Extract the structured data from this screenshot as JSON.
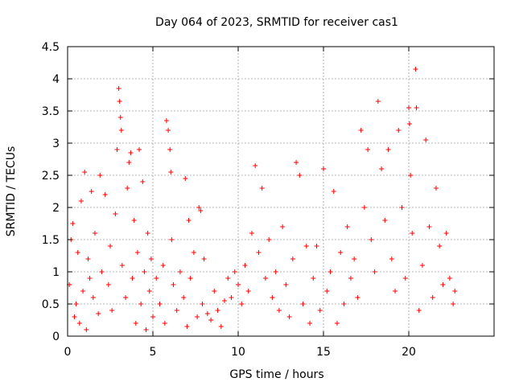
{
  "chart_data": {
    "type": "scatter",
    "title": "Day 064 of 2023, SRMTID for receiver cas1",
    "xlabel": "GPS time / hours",
    "ylabel": "SRMTID / TECUs",
    "xlim": [
      0,
      25
    ],
    "ylim": [
      0,
      4.5
    ],
    "xticks": [
      0,
      5,
      10,
      15,
      20
    ],
    "yticks": [
      0,
      0.5,
      1,
      1.5,
      2,
      2.5,
      3,
      3.5,
      4,
      4.5
    ],
    "x_tick_labels": [
      "0",
      "5",
      "10",
      "15",
      "20"
    ],
    "y_tick_labels": [
      "0",
      "0.5",
      "1",
      "1.5",
      "2",
      "2.5",
      "3",
      "3.5",
      "4",
      "4.5"
    ],
    "grid": true,
    "marker": "+",
    "color": "#ff0000",
    "series": [
      {
        "name": "SRMTID",
        "points": [
          [
            0.1,
            0.8
          ],
          [
            0.2,
            1.5
          ],
          [
            0.3,
            1.75
          ],
          [
            0.4,
            0.3
          ],
          [
            0.5,
            0.5
          ],
          [
            0.6,
            1.3
          ],
          [
            0.7,
            0.2
          ],
          [
            0.8,
            2.1
          ],
          [
            0.9,
            0.7
          ],
          [
            1.0,
            2.55
          ],
          [
            1.1,
            0.1
          ],
          [
            1.2,
            1.2
          ],
          [
            1.3,
            0.9
          ],
          [
            1.4,
            2.25
          ],
          [
            1.5,
            0.6
          ],
          [
            1.6,
            1.6
          ],
          [
            1.8,
            0.35
          ],
          [
            1.9,
            2.5
          ],
          [
            2.0,
            1.0
          ],
          [
            2.2,
            2.2
          ],
          [
            2.4,
            0.8
          ],
          [
            2.5,
            1.4
          ],
          [
            2.6,
            0.4
          ],
          [
            2.8,
            1.9
          ],
          [
            2.9,
            2.9
          ],
          [
            3.0,
            3.85
          ],
          [
            3.05,
            3.65
          ],
          [
            3.1,
            3.4
          ],
          [
            3.15,
            3.2
          ],
          [
            3.2,
            1.1
          ],
          [
            3.4,
            0.6
          ],
          [
            3.5,
            2.3
          ],
          [
            3.6,
            2.7
          ],
          [
            3.7,
            2.85
          ],
          [
            3.8,
            0.9
          ],
          [
            3.9,
            1.8
          ],
          [
            4.0,
            0.2
          ],
          [
            4.1,
            1.3
          ],
          [
            4.2,
            2.9
          ],
          [
            4.3,
            0.5
          ],
          [
            4.4,
            2.4
          ],
          [
            4.5,
            1.0
          ],
          [
            4.6,
            0.1
          ],
          [
            4.7,
            1.6
          ],
          [
            4.8,
            0.7
          ],
          [
            4.9,
            1.2
          ],
          [
            5.0,
            0.3
          ],
          [
            5.2,
            0.9
          ],
          [
            5.4,
            0.5
          ],
          [
            5.6,
            1.1
          ],
          [
            5.7,
            0.2
          ],
          [
            5.8,
            3.35
          ],
          [
            5.9,
            3.2
          ],
          [
            6.0,
            2.9
          ],
          [
            6.05,
            2.55
          ],
          [
            6.1,
            1.5
          ],
          [
            6.2,
            0.8
          ],
          [
            6.4,
            0.4
          ],
          [
            6.6,
            1.0
          ],
          [
            6.8,
            0.6
          ],
          [
            6.9,
            2.45
          ],
          [
            7.0,
            0.15
          ],
          [
            7.1,
            1.8
          ],
          [
            7.2,
            0.9
          ],
          [
            7.4,
            1.3
          ],
          [
            7.6,
            0.3
          ],
          [
            7.7,
            2.0
          ],
          [
            7.8,
            1.95
          ],
          [
            7.9,
            0.5
          ],
          [
            8.0,
            1.2
          ],
          [
            8.2,
            0.35
          ],
          [
            8.4,
            0.25
          ],
          [
            8.6,
            0.7
          ],
          [
            8.8,
            0.4
          ],
          [
            9.0,
            0.15
          ],
          [
            9.2,
            0.55
          ],
          [
            9.4,
            0.9
          ],
          [
            9.6,
            0.6
          ],
          [
            9.8,
            1.0
          ],
          [
            10.0,
            0.8
          ],
          [
            10.2,
            0.5
          ],
          [
            10.4,
            1.1
          ],
          [
            10.6,
            0.7
          ],
          [
            10.8,
            1.6
          ],
          [
            11.0,
            2.65
          ],
          [
            11.2,
            1.3
          ],
          [
            11.4,
            2.3
          ],
          [
            11.6,
            0.9
          ],
          [
            11.8,
            1.5
          ],
          [
            12.0,
            0.6
          ],
          [
            12.2,
            1.0
          ],
          [
            12.4,
            0.4
          ],
          [
            12.6,
            1.7
          ],
          [
            12.8,
            0.8
          ],
          [
            13.0,
            0.3
          ],
          [
            13.2,
            1.2
          ],
          [
            13.4,
            2.7
          ],
          [
            13.6,
            2.5
          ],
          [
            13.8,
            0.5
          ],
          [
            14.0,
            1.4
          ],
          [
            14.2,
            0.2
          ],
          [
            14.4,
            0.9
          ],
          [
            14.6,
            1.4
          ],
          [
            14.8,
            0.4
          ],
          [
            15.0,
            2.6
          ],
          [
            15.2,
            0.7
          ],
          [
            15.4,
            1.0
          ],
          [
            15.6,
            2.25
          ],
          [
            15.8,
            0.2
          ],
          [
            16.0,
            1.3
          ],
          [
            16.2,
            0.5
          ],
          [
            16.4,
            1.7
          ],
          [
            16.6,
            0.9
          ],
          [
            16.8,
            1.2
          ],
          [
            17.0,
            0.6
          ],
          [
            17.2,
            3.2
          ],
          [
            17.4,
            2.0
          ],
          [
            17.6,
            2.9
          ],
          [
            17.8,
            1.5
          ],
          [
            18.0,
            1.0
          ],
          [
            18.2,
            3.65
          ],
          [
            18.4,
            2.6
          ],
          [
            18.6,
            1.8
          ],
          [
            18.8,
            2.9
          ],
          [
            19.0,
            1.2
          ],
          [
            19.2,
            0.7
          ],
          [
            19.4,
            3.2
          ],
          [
            19.6,
            2.0
          ],
          [
            19.8,
            0.9
          ],
          [
            20.0,
            3.55
          ],
          [
            20.05,
            3.3
          ],
          [
            20.1,
            2.5
          ],
          [
            20.2,
            1.6
          ],
          [
            20.4,
            4.15
          ],
          [
            20.45,
            3.55
          ],
          [
            20.6,
            0.4
          ],
          [
            20.8,
            1.1
          ],
          [
            21.0,
            3.05
          ],
          [
            21.2,
            1.7
          ],
          [
            21.4,
            0.6
          ],
          [
            21.6,
            2.3
          ],
          [
            21.8,
            1.4
          ],
          [
            22.0,
            0.8
          ],
          [
            22.2,
            1.6
          ],
          [
            22.4,
            0.9
          ],
          [
            22.6,
            0.5
          ],
          [
            22.7,
            0.7
          ]
        ]
      }
    ]
  }
}
